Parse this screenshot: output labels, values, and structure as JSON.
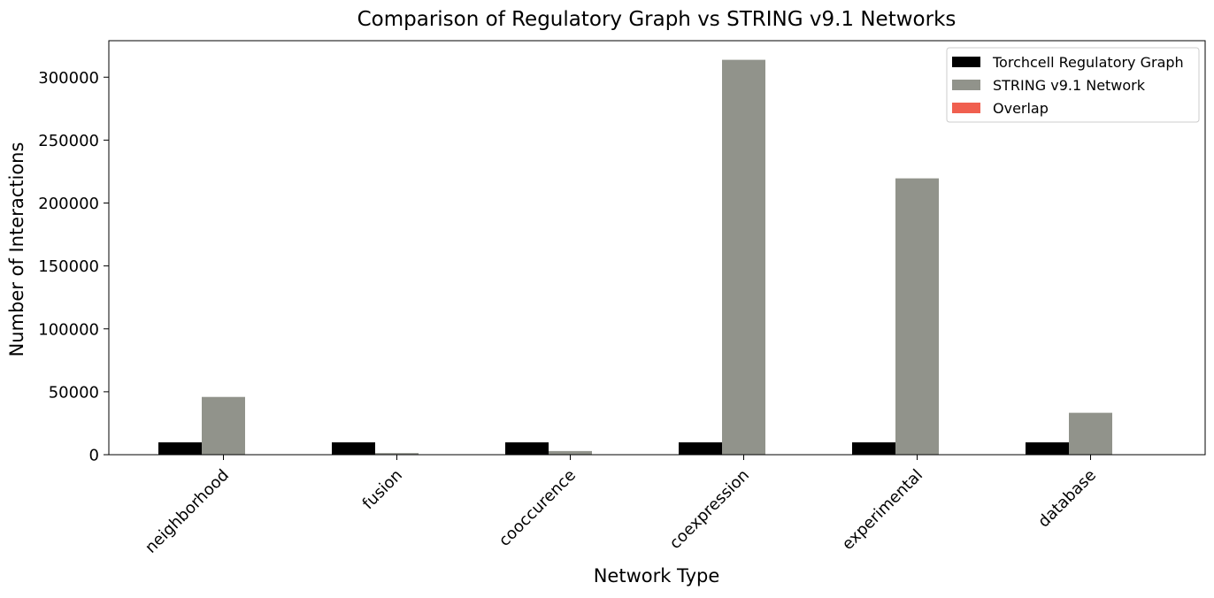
{
  "chart_data": {
    "type": "bar",
    "title": "Comparison of Regulatory Graph vs STRING v9.1 Networks",
    "xlabel": "Network Type",
    "ylabel": "Number of Interactions",
    "categories": [
      "neighborhood",
      "fusion",
      "cooccurence",
      "coexpression",
      "experimental",
      "database"
    ],
    "series": [
      {
        "name": "Torchcell Regulatory Graph",
        "color": "#000000",
        "values": [
          9800,
          9800,
          9800,
          9800,
          9800,
          9800
        ]
      },
      {
        "name": "STRING v9.1 Network",
        "color": "#91938b",
        "values": [
          45900,
          1300,
          2900,
          313800,
          219600,
          33300
        ]
      },
      {
        "name": "Overlap",
        "color": "#f05f4f",
        "values": [
          0,
          0,
          0,
          0,
          0,
          0
        ]
      }
    ],
    "ylim": [
      0,
      329000
    ],
    "yticks": [
      0,
      50000,
      100000,
      150000,
      200000,
      250000,
      300000
    ],
    "ytick_labels": [
      "0",
      "50000",
      "100000",
      "150000",
      "200000",
      "250000",
      "300000"
    ],
    "xtick_rotation_deg": 45,
    "grid": false,
    "legend_position": "top-right"
  }
}
